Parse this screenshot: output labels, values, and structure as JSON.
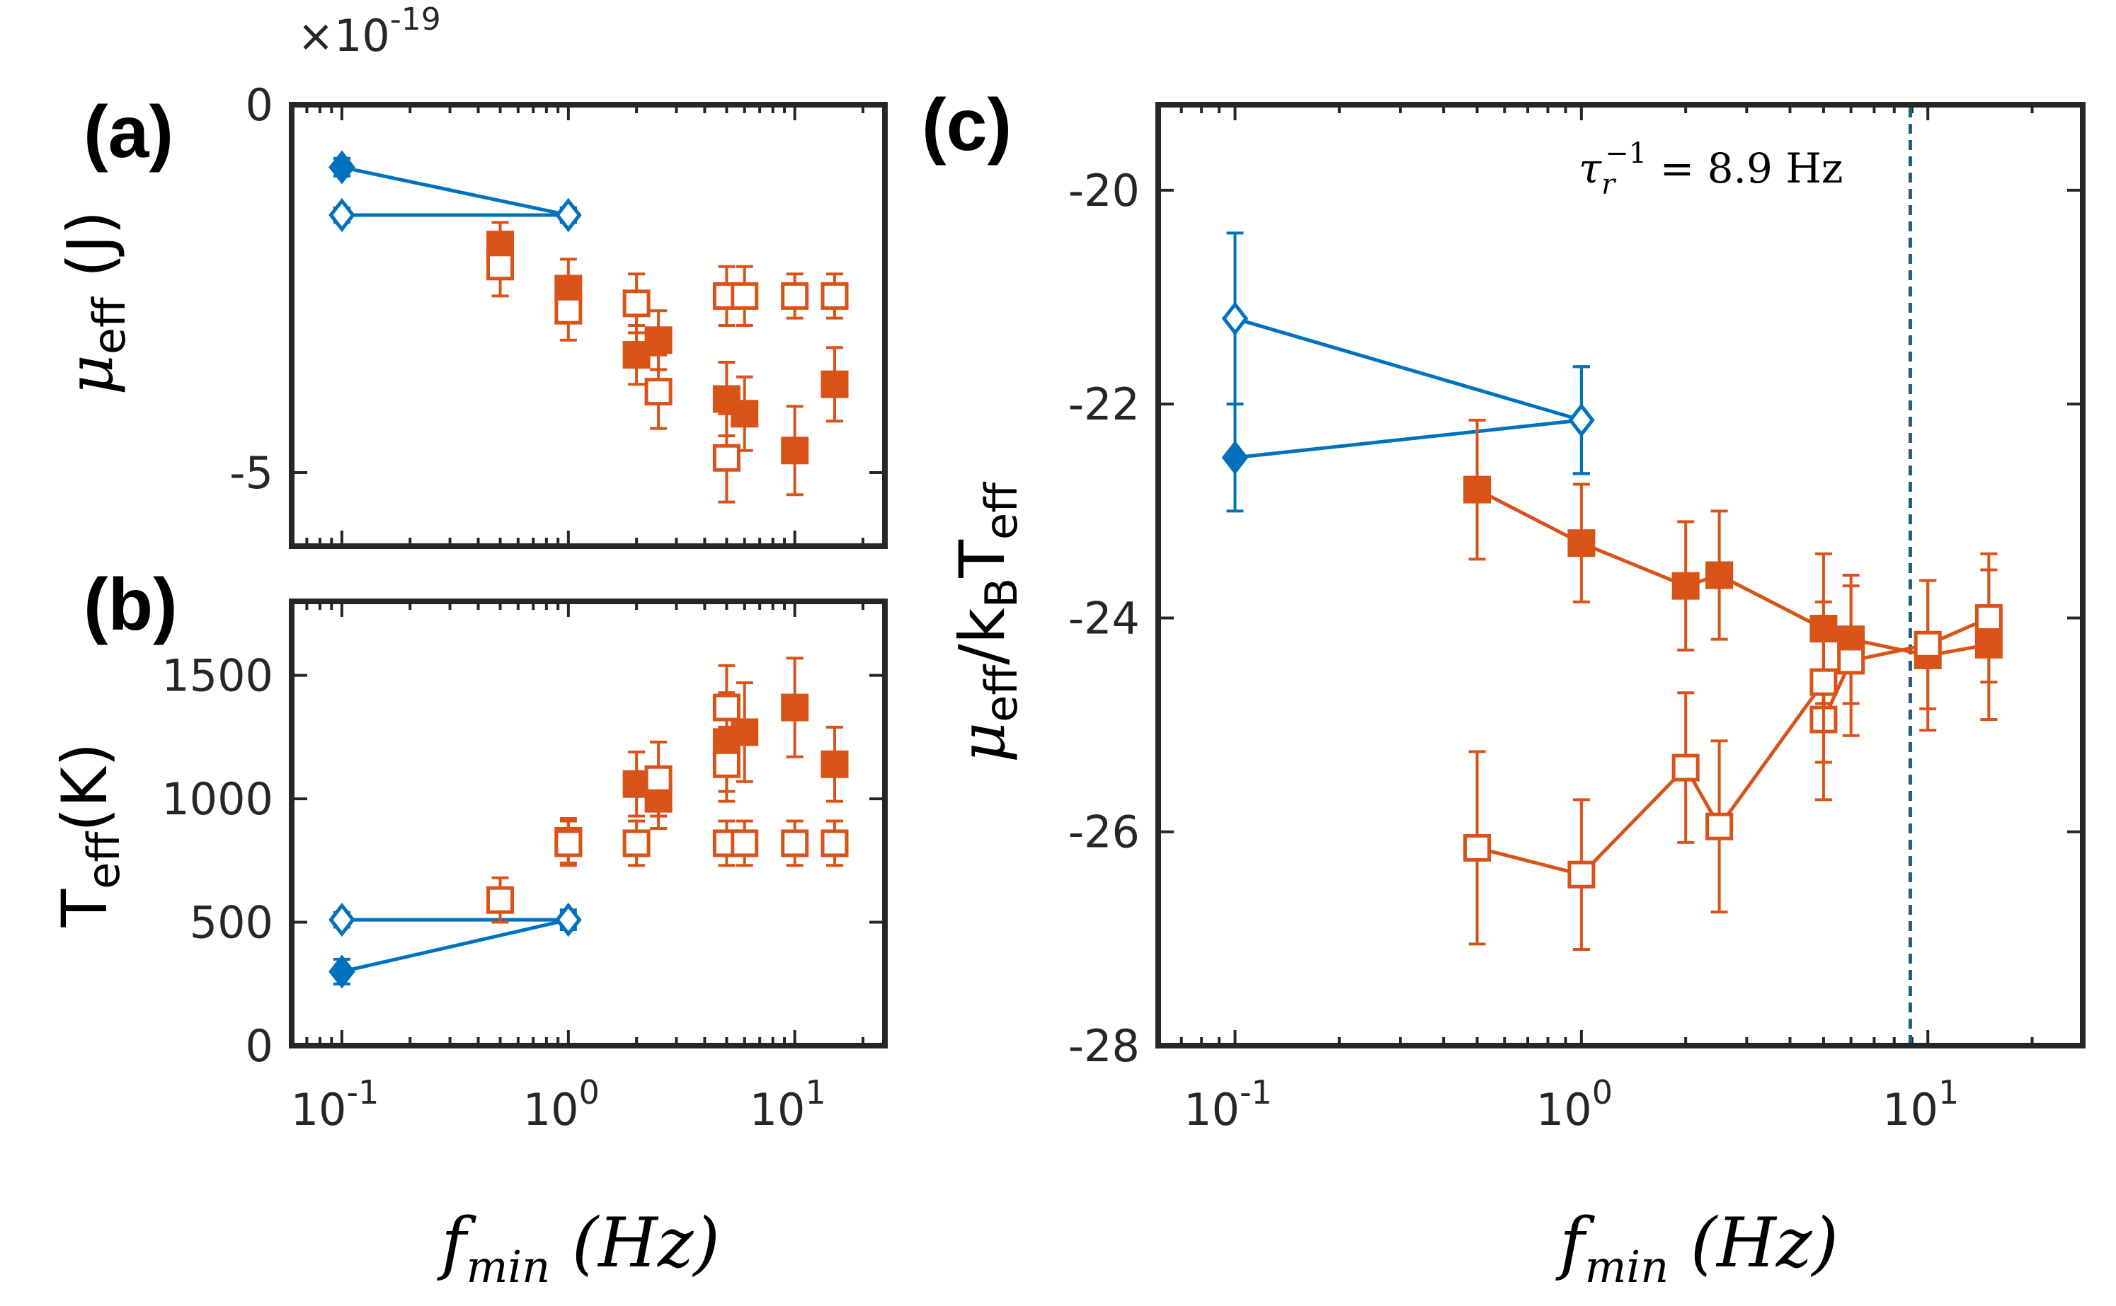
{
  "colors": {
    "blue": "#0072BD",
    "orange": "#D95319",
    "axis": "#262626",
    "vline": "#1f5f7a"
  },
  "chart_data": [
    {
      "id": "a",
      "type": "scatter",
      "panel_label": "(a)",
      "ylabel_main": "μ",
      "ylabel_sub": "eff",
      "ylabel_unit": " (J)",
      "y_multiplier_base": "×10",
      "y_multiplier_exp": "-19",
      "xscale": "log",
      "xlim": [
        0.06,
        25
      ],
      "ylim": [
        -6,
        0
      ],
      "yticks": [
        {
          "v": 0,
          "label": "0"
        },
        {
          "v": -5,
          "label": "-5"
        }
      ],
      "series": [
        {
          "name": "blue filled",
          "color": "blue",
          "marker": "diamond",
          "filled": true,
          "line": true,
          "points": [
            {
              "x": 0.1,
              "y": -0.85,
              "err": 0.12
            },
            {
              "x": 1.0,
              "y": -1.5,
              "err": 0.1
            }
          ]
        },
        {
          "name": "blue open",
          "color": "blue",
          "marker": "diamond",
          "filled": false,
          "line": true,
          "points": [
            {
              "x": 0.1,
              "y": -1.5,
              "err": 0.1
            },
            {
              "x": 1.0,
              "y": -1.5,
              "err": 0.1
            }
          ]
        },
        {
          "name": "orange filled",
          "color": "orange",
          "marker": "square",
          "filled": true,
          "line": false,
          "points": [
            {
              "x": 0.5,
              "y": -1.9,
              "err": 0.3
            },
            {
              "x": 1.0,
              "y": -2.5,
              "err": 0.4
            },
            {
              "x": 2.0,
              "y": -3.4,
              "err": 0.4
            },
            {
              "x": 2.5,
              "y": -3.2,
              "err": 0.4
            },
            {
              "x": 5.0,
              "y": -4.0,
              "err": 0.5
            },
            {
              "x": 6.0,
              "y": -4.2,
              "err": 0.5
            },
            {
              "x": 10.0,
              "y": -4.7,
              "err": 0.6
            },
            {
              "x": 15.0,
              "y": -3.8,
              "err": 0.5
            }
          ]
        },
        {
          "name": "orange open",
          "color": "orange",
          "marker": "square",
          "filled": false,
          "line": false,
          "points": [
            {
              "x": 0.5,
              "y": -2.2,
              "err": 0.4
            },
            {
              "x": 1.0,
              "y": -2.8,
              "err": 0.4
            },
            {
              "x": 2.0,
              "y": -2.7,
              "err": 0.4
            },
            {
              "x": 2.5,
              "y": -3.9,
              "err": 0.5
            },
            {
              "x": 5.0,
              "y": -2.6,
              "err": 0.4
            },
            {
              "x": 6.0,
              "y": -2.6,
              "err": 0.4
            },
            {
              "x": 5.0,
              "y": -4.8,
              "err": 0.6
            },
            {
              "x": 10.0,
              "y": -2.6,
              "err": 0.3
            },
            {
              "x": 15.0,
              "y": -2.6,
              "err": 0.3
            }
          ]
        }
      ]
    },
    {
      "id": "b",
      "type": "scatter",
      "panel_label": "(b)",
      "ylabel_main": "T",
      "ylabel_sub": "eff",
      "ylabel_unit": "(K)",
      "xscale": "log",
      "xlim": [
        0.06,
        25
      ],
      "ylim": [
        0,
        1800
      ],
      "yticks": [
        {
          "v": 0,
          "label": "0"
        },
        {
          "v": 500,
          "label": "500"
        },
        {
          "v": 1000,
          "label": "1000"
        },
        {
          "v": 1500,
          "label": "1500"
        }
      ],
      "xticks": [
        {
          "v": 0.1,
          "base": "10",
          "exp": "-1"
        },
        {
          "v": 1,
          "base": "10",
          "exp": "0"
        },
        {
          "v": 10,
          "base": "10",
          "exp": "1"
        }
      ],
      "xlabel_main": "f",
      "xlabel_sub": "min",
      "xlabel_unit": " (Hz)",
      "series": [
        {
          "name": "blue filled",
          "color": "blue",
          "marker": "diamond",
          "filled": true,
          "line": true,
          "points": [
            {
              "x": 0.1,
              "y": 300,
              "err": 50
            },
            {
              "x": 1.0,
              "y": 510,
              "err": 40
            }
          ]
        },
        {
          "name": "blue open",
          "color": "blue",
          "marker": "diamond",
          "filled": false,
          "line": true,
          "points": [
            {
              "x": 0.1,
              "y": 510,
              "err": 30
            },
            {
              "x": 1.0,
              "y": 510,
              "err": 30
            }
          ]
        },
        {
          "name": "orange filled",
          "color": "orange",
          "marker": "square",
          "filled": true,
          "line": false,
          "points": [
            {
              "x": 1.0,
              "y": 830,
              "err": 90
            },
            {
              "x": 2.0,
              "y": 1060,
              "err": 130
            },
            {
              "x": 2.5,
              "y": 1000,
              "err": 120
            },
            {
              "x": 5.0,
              "y": 1230,
              "err": 200
            },
            {
              "x": 6.0,
              "y": 1270,
              "err": 200
            },
            {
              "x": 10.0,
              "y": 1370,
              "err": 200
            },
            {
              "x": 15.0,
              "y": 1140,
              "err": 150
            }
          ]
        },
        {
          "name": "orange open",
          "color": "orange",
          "marker": "square",
          "filled": false,
          "line": false,
          "points": [
            {
              "x": 0.5,
              "y": 590,
              "err": 90
            },
            {
              "x": 1.0,
              "y": 820,
              "err": 90
            },
            {
              "x": 2.0,
              "y": 820,
              "err": 90
            },
            {
              "x": 2.5,
              "y": 1080,
              "err": 150
            },
            {
              "x": 5.0,
              "y": 1370,
              "err": 170
            },
            {
              "x": 5.0,
              "y": 1140,
              "err": 150
            },
            {
              "x": 5.0,
              "y": 820,
              "err": 90
            },
            {
              "x": 6.0,
              "y": 820,
              "err": 90
            },
            {
              "x": 10.0,
              "y": 820,
              "err": 90
            },
            {
              "x": 15.0,
              "y": 820,
              "err": 90
            }
          ]
        }
      ]
    },
    {
      "id": "c",
      "type": "line",
      "panel_label": "(c)",
      "ylabel_mu": "μ",
      "ylabel_eff1": "eff",
      "ylabel_slash": "/k",
      "ylabel_B": "B",
      "ylabel_T": "T",
      "ylabel_eff2": "eff",
      "xscale": "log",
      "xlim": [
        0.06,
        28
      ],
      "ylim": [
        -28,
        -19.2
      ],
      "yticks": [
        {
          "v": -20,
          "label": "-20"
        },
        {
          "v": -22,
          "label": "-22"
        },
        {
          "v": -24,
          "label": "-24"
        },
        {
          "v": -26,
          "label": "-26"
        },
        {
          "v": -28,
          "label": "-28"
        }
      ],
      "xticks": [
        {
          "v": 0.1,
          "base": "10",
          "exp": "-1"
        },
        {
          "v": 1,
          "base": "10",
          "exp": "0"
        },
        {
          "v": 10,
          "base": "10",
          "exp": "1"
        }
      ],
      "xlabel_main": "f",
      "xlabel_sub": "min",
      "xlabel_unit": " (Hz)",
      "vline_x": 8.9,
      "annotation_tau": "τ",
      "annotation_sub": "r",
      "annotation_sup": "−1",
      "annotation_rest": " = 8.9 Hz",
      "series": [
        {
          "name": "blue filled",
          "color": "blue",
          "marker": "diamond",
          "filled": true,
          "line": true,
          "points": [
            {
              "x": 0.1,
              "y": -22.5,
              "err": 0.5
            },
            {
              "x": 1.0,
              "y": -22.15,
              "err": 0.5
            }
          ]
        },
        {
          "name": "blue open",
          "color": "blue",
          "marker": "diamond",
          "filled": false,
          "line": true,
          "points": [
            {
              "x": 0.1,
              "y": -21.2,
              "err": 0.8
            },
            {
              "x": 1.0,
              "y": -22.15,
              "err": 0.5
            }
          ]
        },
        {
          "name": "orange filled",
          "color": "orange",
          "marker": "square",
          "filled": true,
          "line": true,
          "points": [
            {
              "x": 0.5,
              "y": -22.8,
              "err": 0.65
            },
            {
              "x": 1.0,
              "y": -23.3,
              "err": 0.55
            },
            {
              "x": 2.0,
              "y": -23.7,
              "err": 0.6
            },
            {
              "x": 2.5,
              "y": -23.6,
              "err": 0.6
            },
            {
              "x": 5.0,
              "y": -24.1,
              "err": 0.7
            },
            {
              "x": 6.0,
              "y": -24.2,
              "err": 0.6
            },
            {
              "x": 10.0,
              "y": -24.35,
              "err": 0.7
            },
            {
              "x": 15.0,
              "y": -24.25,
              "err": 0.7
            }
          ]
        },
        {
          "name": "orange open",
          "color": "orange",
          "marker": "square",
          "filled": false,
          "line": true,
          "points": [
            {
              "x": 0.5,
              "y": -26.15,
              "err": 0.9
            },
            {
              "x": 1.0,
              "y": -26.4,
              "err": 0.7
            },
            {
              "x": 2.0,
              "y": -25.4,
              "err": 0.7
            },
            {
              "x": 2.5,
              "y": -25.95,
              "err": 0.8
            },
            {
              "x": 5.0,
              "y": -24.95,
              "err": 0.75
            },
            {
              "x": 5.0,
              "y": -24.6,
              "err": 0.75
            },
            {
              "x": 6.0,
              "y": -24.4,
              "err": 0.7
            },
            {
              "x": 10.0,
              "y": -24.25,
              "err": 0.6
            },
            {
              "x": 15.0,
              "y": -24.0,
              "err": 0.6
            }
          ]
        }
      ]
    }
  ]
}
